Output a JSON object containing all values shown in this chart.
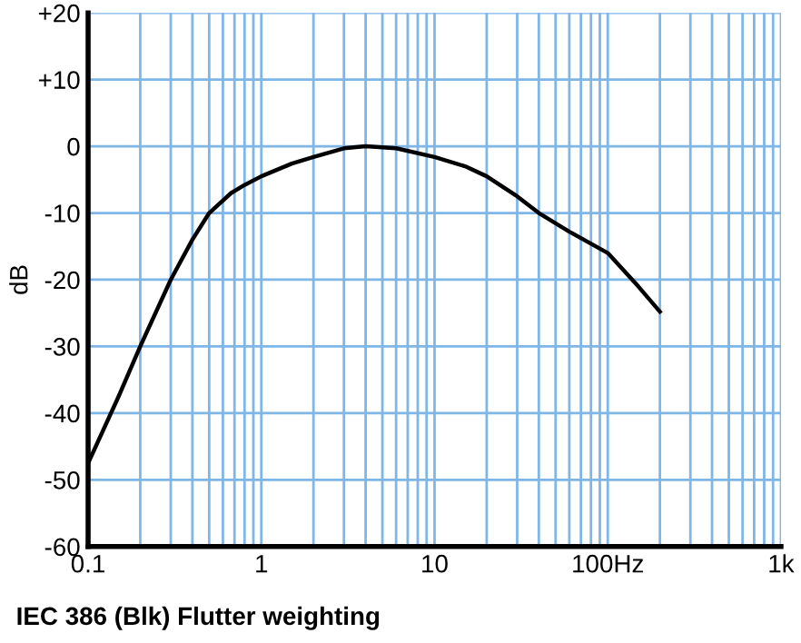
{
  "chart_data": {
    "type": "line",
    "title": "IEC 386 (Blk) Flutter weighting",
    "ylabel": "dB",
    "x": [
      0.1,
      0.15,
      0.2,
      0.3,
      0.4,
      0.5,
      0.67,
      0.8,
      1,
      1.5,
      2,
      3,
      4,
      6,
      10,
      15,
      20,
      30,
      40,
      60,
      100,
      150,
      200
    ],
    "series": [
      {
        "color": "#000000",
        "values": [
          -47.5,
          -37.5,
          -30,
          -20,
          -14,
          -10,
          -7,
          -5.8,
          -4.5,
          -2.6,
          -1.6,
          -0.3,
          0,
          -0.3,
          -1.6,
          -3,
          -4.5,
          -7.5,
          -10,
          -12.8,
          -16,
          -21,
          -24.8
        ]
      }
    ],
    "log": "x",
    "xlim": [
      0.1,
      1000
    ],
    "xticks": [
      0.1,
      1,
      10,
      {
        "value": 100,
        "label": "100Hz"
      },
      {
        "value": 1000,
        "label": "1k"
      }
    ],
    "ylim": [
      -60,
      20
    ],
    "yticks": [
      {
        "value": 20,
        "label": "+20"
      },
      {
        "value": 10,
        "label": "+10"
      },
      0,
      -10,
      -20,
      -30,
      -40,
      -50,
      -60
    ],
    "grid": true,
    "marker": "none",
    "line_style": "solid",
    "legend": false
  }
}
